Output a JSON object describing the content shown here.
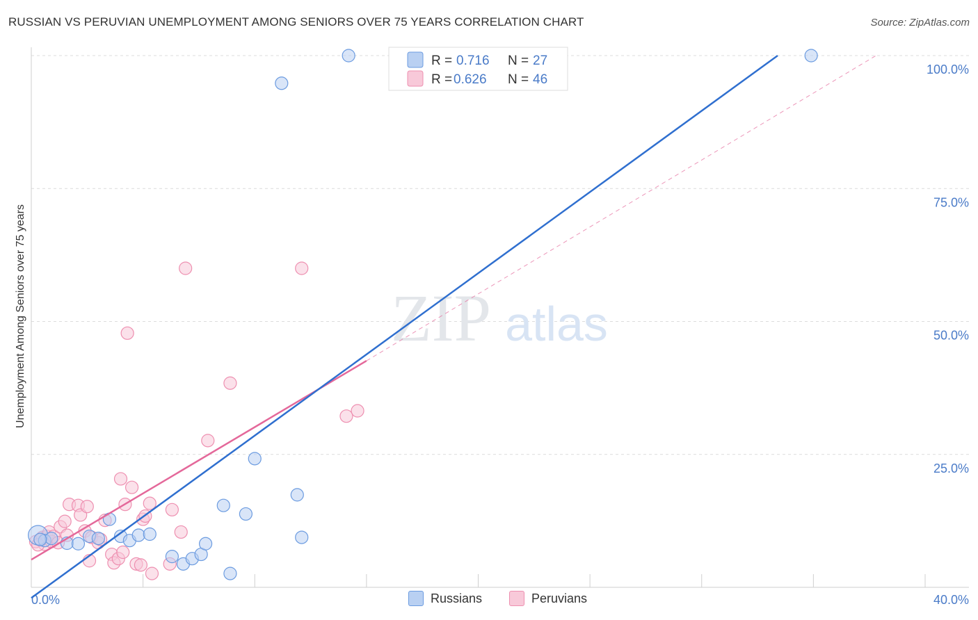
{
  "title": "RUSSIAN VS PERUVIAN UNEMPLOYMENT AMONG SENIORS OVER 75 YEARS CORRELATION CHART",
  "source": "Source: ZipAtlas.com",
  "watermark": {
    "zip": "ZIP",
    "atlas": "atlas"
  },
  "colors": {
    "russians": "#6b9be0",
    "russians_fill": "#b9d0f2",
    "russians_line": "#2f6fcf",
    "peruvians": "#ee8fb0",
    "peruvians_fill": "#f8c9d9",
    "peruvians_line": "#e4689a",
    "tick": "#4a7bc8"
  },
  "legend": {
    "r_label": "R =",
    "n_label": "N =",
    "russians": {
      "r": "0.716",
      "n": "27"
    },
    "peruvians": {
      "r": "0.626",
      "n": "46"
    }
  },
  "bottom_legend": {
    "russians": "Russians",
    "peruvians": "Peruvians"
  },
  "chart_data": {
    "type": "scatter",
    "title": "RUSSIAN VS PERUVIAN UNEMPLOYMENT AMONG SENIORS OVER 75 YEARS CORRELATION CHART",
    "xlabel": "",
    "ylabel": "Unemployment Among Seniors over 75 years",
    "xlim": [
      0,
      40
    ],
    "ylim": [
      0,
      100
    ],
    "x_tick_labels": {
      "min": "0.0%",
      "max": "40.0%"
    },
    "y_ticks": [
      {
        "value": 100,
        "label": "100.0%"
      },
      {
        "value": 75,
        "label": "75.0%"
      },
      {
        "value": 50,
        "label": "50.0%"
      },
      {
        "value": 25,
        "label": "25.0%"
      }
    ],
    "series": [
      {
        "name": "Russians",
        "points": [
          [
            0.3,
            9.8
          ],
          [
            0.6,
            8.8
          ],
          [
            0.9,
            9.2
          ],
          [
            1.6,
            8.3
          ],
          [
            2.1,
            8.2
          ],
          [
            2.6,
            9.6
          ],
          [
            3.0,
            9.2
          ],
          [
            3.5,
            12.8
          ],
          [
            4.0,
            9.6
          ],
          [
            4.4,
            8.8
          ],
          [
            4.8,
            9.8
          ],
          [
            5.3,
            10.0
          ],
          [
            6.3,
            5.8
          ],
          [
            6.8,
            4.4
          ],
          [
            7.2,
            5.4
          ],
          [
            7.6,
            6.2
          ],
          [
            7.8,
            8.2
          ],
          [
            8.6,
            15.4
          ],
          [
            8.9,
            2.6
          ],
          [
            9.6,
            13.8
          ],
          [
            10.0,
            24.2
          ],
          [
            11.2,
            94.8
          ],
          [
            11.9,
            17.4
          ],
          [
            12.1,
            9.4
          ],
          [
            14.2,
            100.0
          ],
          [
            0.4,
            9.0
          ],
          [
            34.9,
            100.0
          ]
        ],
        "trend": {
          "x0": 0.0,
          "y0": -2.0,
          "x1": 33.4,
          "y1": 100.0
        }
      },
      {
        "name": "Peruvians",
        "points": [
          [
            0.2,
            8.6
          ],
          [
            0.4,
            8.9
          ],
          [
            0.5,
            9.4
          ],
          [
            0.6,
            8.1
          ],
          [
            0.7,
            9.6
          ],
          [
            0.8,
            10.4
          ],
          [
            0.9,
            8.6
          ],
          [
            1.0,
            9.6
          ],
          [
            1.2,
            8.4
          ],
          [
            1.3,
            11.4
          ],
          [
            1.5,
            12.4
          ],
          [
            1.6,
            9.8
          ],
          [
            1.7,
            15.6
          ],
          [
            2.1,
            15.4
          ],
          [
            2.2,
            13.6
          ],
          [
            2.4,
            10.6
          ],
          [
            2.5,
            15.2
          ],
          [
            2.6,
            5.0
          ],
          [
            2.7,
            9.4
          ],
          [
            3.0,
            8.4
          ],
          [
            3.1,
            9.0
          ],
          [
            3.3,
            12.6
          ],
          [
            3.6,
            6.2
          ],
          [
            3.7,
            4.6
          ],
          [
            3.9,
            5.4
          ],
          [
            4.0,
            20.4
          ],
          [
            4.1,
            6.6
          ],
          [
            4.2,
            15.6
          ],
          [
            4.3,
            47.8
          ],
          [
            4.5,
            18.8
          ],
          [
            4.7,
            4.4
          ],
          [
            4.9,
            4.2
          ],
          [
            5.0,
            12.8
          ],
          [
            5.1,
            13.4
          ],
          [
            5.3,
            15.8
          ],
          [
            5.4,
            2.6
          ],
          [
            6.2,
            4.4
          ],
          [
            6.3,
            14.6
          ],
          [
            6.7,
            10.4
          ],
          [
            6.9,
            60.0
          ],
          [
            7.9,
            27.6
          ],
          [
            8.9,
            38.4
          ],
          [
            12.1,
            60.0
          ],
          [
            14.1,
            32.2
          ],
          [
            14.6,
            33.2
          ],
          [
            0.3,
            8.0
          ]
        ],
        "trend": {
          "x0": 0.0,
          "y0": 5.2,
          "x1": 15.0,
          "y1": 42.6
        },
        "trend_extension": {
          "x0": 15.0,
          "y0": 42.6,
          "x1": 37.8,
          "y1": 100.0
        }
      }
    ]
  }
}
